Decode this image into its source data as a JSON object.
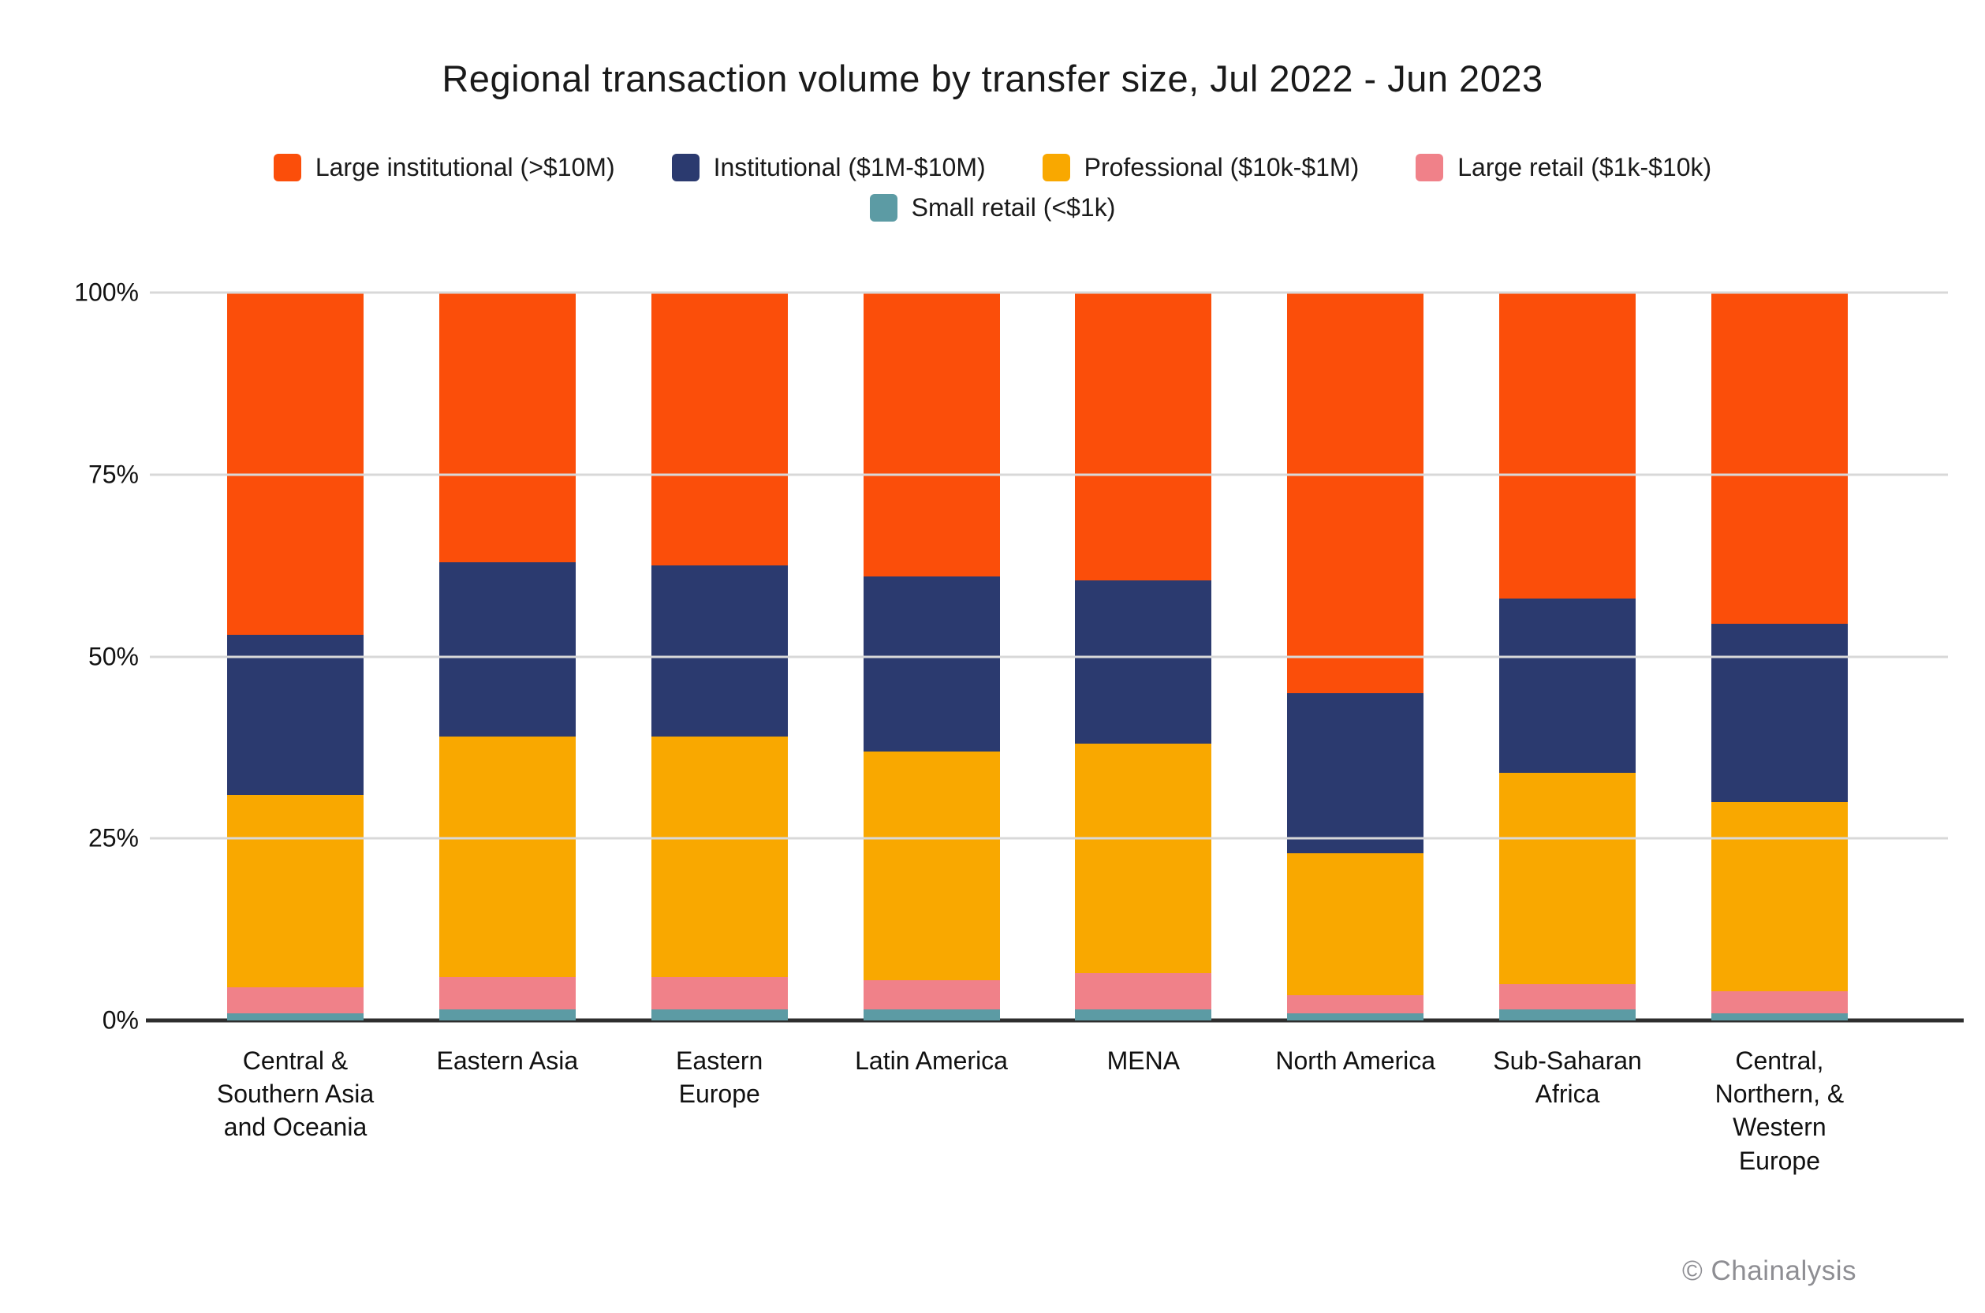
{
  "title": "Regional transaction volume by transfer size, Jul 2022 - Jun 2023",
  "branding": {
    "watermark": "© Chainalysis"
  },
  "chart_data": {
    "type": "bar",
    "subtype": "stacked-percent",
    "title": "Regional transaction volume by transfer size, Jul 2022 - Jun 2023",
    "legend_position": "top",
    "grid": "horizontal",
    "ylim": [
      0,
      100
    ],
    "yticks": [
      {
        "label": "0%",
        "value": 0
      },
      {
        "label": "25%",
        "value": 25
      },
      {
        "label": "50%",
        "value": 50
      },
      {
        "label": "75%",
        "value": 75
      },
      {
        "label": "100%",
        "value": 100
      }
    ],
    "categories": [
      "Central &\nSouthern Asia\nand Oceania",
      "Eastern Asia",
      "Eastern\nEurope",
      "Latin America",
      "MENA",
      "North America",
      "Sub-Saharan\nAfrica",
      "Central,\nNorthern, &\nWestern\nEurope"
    ],
    "series": [
      {
        "name": "Large institutional (>$10M)",
        "color": "#fb4e0a",
        "values": [
          47,
          37,
          37.5,
          39,
          39.5,
          55,
          42,
          45.5
        ]
      },
      {
        "name": "Institutional ($1M-$10M)",
        "color": "#2b3a6f",
        "values": [
          22,
          24,
          23.5,
          24,
          22.5,
          22,
          24,
          24.5
        ]
      },
      {
        "name": "Professional ($10k-$1M)",
        "color": "#f9a800",
        "values": [
          26.5,
          33,
          33,
          31.5,
          31.5,
          19.5,
          29,
          26
        ]
      },
      {
        "name": "Large retail ($1k-$10k)",
        "color": "#f08189",
        "values": [
          3.5,
          4.5,
          4.5,
          4,
          5,
          2.5,
          3.5,
          3
        ]
      },
      {
        "name": "Small retail (<$1k)",
        "color": "#5c9ba4",
        "values": [
          1,
          1.5,
          1.5,
          1.5,
          1.5,
          1,
          1.5,
          1
        ]
      }
    ]
  }
}
